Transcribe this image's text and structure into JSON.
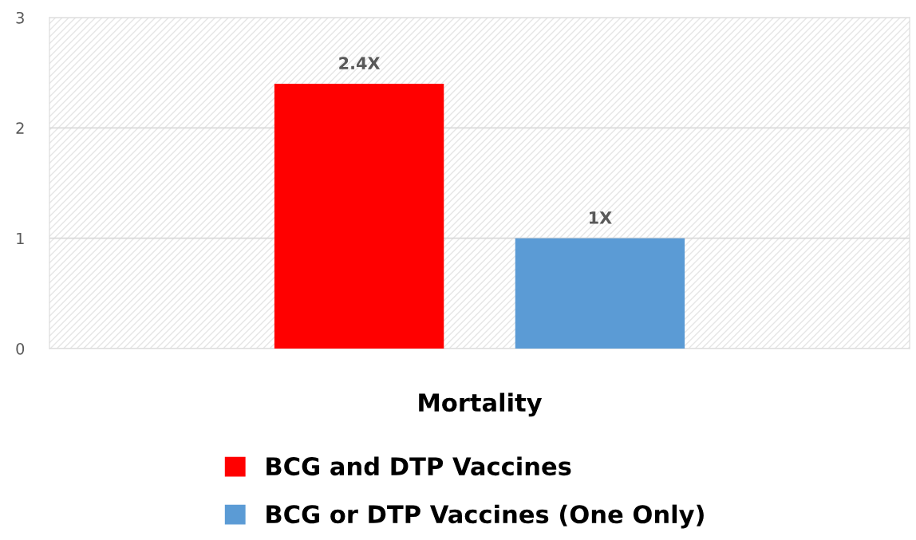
{
  "chart_data": {
    "type": "bar",
    "categories": [
      "Mortality"
    ],
    "series": [
      {
        "name": "BCG and DTP Vaccines",
        "color": "#ff0000",
        "values": [
          2.4
        ],
        "value_labels": [
          "2.4X"
        ]
      },
      {
        "name": "BCG or DTP Vaccines (One Only)",
        "color": "#5b9bd5",
        "values": [
          1
        ],
        "value_labels": [
          "1X"
        ]
      }
    ],
    "ylim": [
      0,
      3
    ],
    "yticks": [
      0,
      1,
      2,
      3
    ],
    "grid": "y",
    "legend": "bottom"
  }
}
